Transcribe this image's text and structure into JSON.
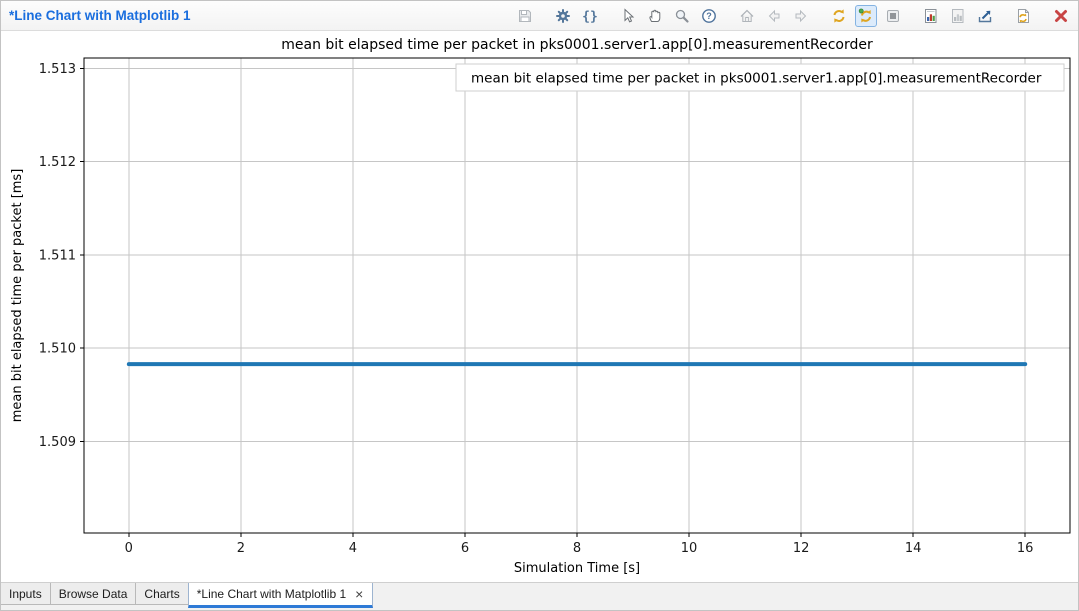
{
  "window": {
    "view_title": "*Line Chart with Matplotlib 1"
  },
  "toolbar": {
    "icons": [
      {
        "name": "save",
        "enabled": false
      },
      {
        "name": "configure-chart-gear",
        "enabled": true
      },
      {
        "name": "edit-script-braces",
        "enabled": true,
        "glyph": "{}"
      },
      {
        "name": "cursor-select",
        "enabled": true
      },
      {
        "name": "pan-hand",
        "enabled": true
      },
      {
        "name": "zoom-magnifier",
        "enabled": true
      },
      {
        "name": "help",
        "enabled": true,
        "glyph": "?"
      },
      {
        "name": "home-view",
        "enabled": false
      },
      {
        "name": "back",
        "enabled": false
      },
      {
        "name": "forward",
        "enabled": false
      },
      {
        "name": "refresh",
        "enabled": true
      },
      {
        "name": "auto-refresh",
        "enabled": true,
        "active": true
      },
      {
        "name": "stop",
        "enabled": true
      },
      {
        "name": "chart-report",
        "enabled": true
      },
      {
        "name": "chart-save",
        "enabled": false
      },
      {
        "name": "export-chart",
        "enabled": true
      },
      {
        "name": "refresh-script",
        "enabled": true
      },
      {
        "name": "close-view",
        "enabled": true
      }
    ]
  },
  "tabs": [
    {
      "label": "Inputs",
      "active": false
    },
    {
      "label": "Browse Data",
      "active": false
    },
    {
      "label": "Charts",
      "active": false
    },
    {
      "label": "*Line Chart with Matplotlib 1",
      "active": true,
      "closable": true,
      "close_glyph": "×"
    }
  ],
  "chart_data": {
    "type": "line",
    "title": "mean bit elapsed time per packet in pks0001.server1.app[0].measurementRecorder",
    "xlabel": "Simulation Time [s]",
    "ylabel": "mean bit elapsed time per packet [ms]",
    "legend": [
      "mean bit elapsed time per packet in pks0001.server1.app[0].measurementRecorder"
    ],
    "legend_position": "upper right",
    "grid": true,
    "grid_color": "#c6c6c6",
    "xlim": [
      -0.8,
      16.8
    ],
    "ylim": [
      1.50802,
      1.51311
    ],
    "xticks": [
      0,
      2,
      4,
      6,
      8,
      10,
      12,
      14,
      16
    ],
    "yticks": [
      1.509,
      1.51,
      1.511,
      1.512,
      1.513
    ],
    "ytick_labels": [
      "1.509",
      "1.510",
      "1.511",
      "1.512",
      "1.513"
    ],
    "series": [
      {
        "name": "mean bit elapsed time per packet in pks0001.server1.app[0].measurementRecorder",
        "color": "#1f77b4",
        "linewidth": 4,
        "x": [
          0,
          16
        ],
        "y": [
          1.50983,
          1.50983
        ]
      }
    ]
  }
}
